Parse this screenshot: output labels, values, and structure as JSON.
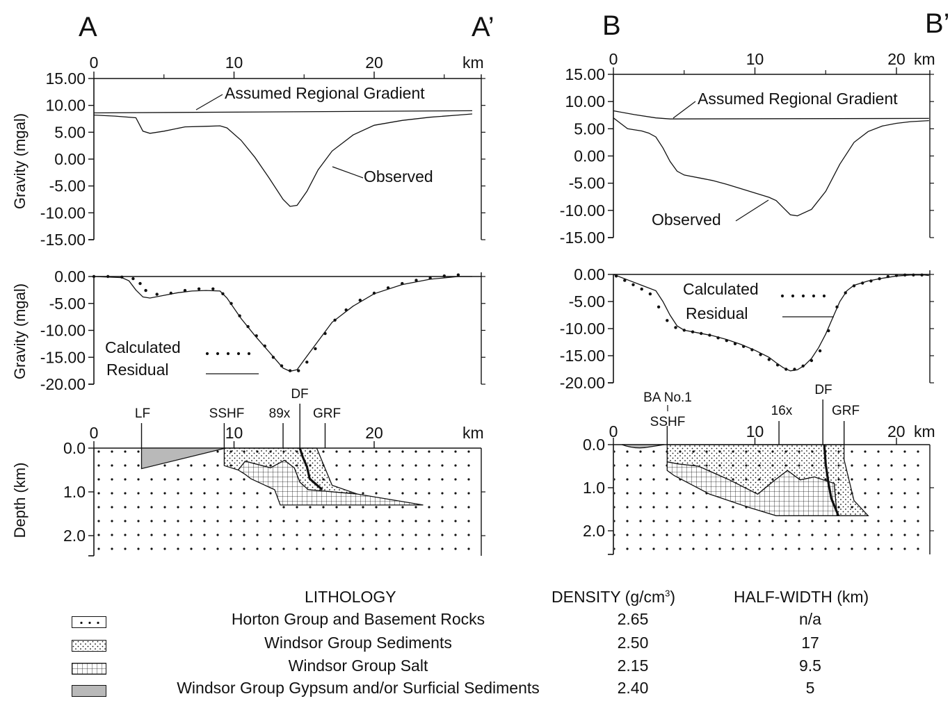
{
  "section_labels": {
    "a": "A",
    "a_prime": "A’",
    "b": "B",
    "b_prime": "B’"
  },
  "axes": {
    "km_unit": "km",
    "dist_ticks_a": [
      "0",
      "10",
      "20"
    ],
    "dist_ticks_b": [
      "0",
      "10",
      "20"
    ],
    "grav_ticks_top": [
      "15.00",
      "10.00",
      "5.00",
      "0.00",
      "-5.00",
      "-10.00",
      "-15.00"
    ],
    "grav_ticks_resid": [
      "0.00",
      "-5.00",
      "-10.00",
      "-15.00",
      "-20.00"
    ],
    "depth_ticks": [
      "0.0",
      "1.0",
      "2.0"
    ],
    "gravity_label": "Gravity (mgal)",
    "depth_label": "Depth (km)"
  },
  "annotations": {
    "regional": "Assumed Regional Gradient",
    "observed": "Observed",
    "calculated": "Calculated",
    "residual": "Residual"
  },
  "faults_a": [
    "LF",
    "SSHF",
    "89x",
    "DF",
    "GRF"
  ],
  "faults_b": [
    "BA No.1",
    "SSHF",
    "16x",
    "DF",
    "GRF"
  ],
  "legend": {
    "headers": {
      "lithology": "LITHOLOGY",
      "density_prefix": "DENSITY (g/cm",
      "density_sup": "3",
      "density_suffix": ")",
      "halfwidth": "HALF-WIDTH (km)"
    },
    "rows": [
      {
        "name": "Horton Group and Basement Rocks",
        "density": "2.65",
        "halfwidth": "n/a",
        "pattern": "dots"
      },
      {
        "name": "Windsor Group Sediments",
        "density": "2.50",
        "halfwidth": "17",
        "pattern": "stipple"
      },
      {
        "name": "Windsor Group Salt",
        "density": "2.15",
        "halfwidth": "9.5",
        "pattern": "grid"
      },
      {
        "name": "Windsor Group Gypsum and/or Surficial Sediments",
        "density": "2.40",
        "halfwidth": "5",
        "pattern": "gray"
      }
    ]
  },
  "chart_data": [
    {
      "type": "line",
      "panel": "A-A' gravity",
      "xlim": [
        0,
        27
      ],
      "ylim": [
        -15,
        15
      ],
      "series": [
        {
          "name": "Assumed Regional Gradient",
          "x": [
            0,
            27
          ],
          "y": [
            8.6,
            9.0
          ]
        },
        {
          "name": "Observed",
          "x": [
            0,
            1.5,
            3,
            3.5,
            4,
            5,
            6.5,
            8,
            9,
            9.5,
            10.5,
            11.5,
            12.5,
            13.5,
            14,
            14.5,
            15.2,
            16,
            17,
            18.5,
            20,
            22,
            24,
            26,
            27
          ],
          "y": [
            8.2,
            8.0,
            7.7,
            5.2,
            4.8,
            5.2,
            6.0,
            6.1,
            6.2,
            5.8,
            3.5,
            0.3,
            -3.5,
            -7.5,
            -8.8,
            -8.6,
            -6.0,
            -2.0,
            1.5,
            4.5,
            6.3,
            7.2,
            7.8,
            8.2,
            8.4
          ]
        }
      ]
    },
    {
      "type": "line",
      "panel": "A-A' residual",
      "xlim": [
        0,
        27
      ],
      "ylim": [
        -20,
        0
      ],
      "series": [
        {
          "name": "Calculated",
          "x": [
            0,
            1,
            2,
            2.8,
            3.3,
            3.7,
            4.5,
            5.5,
            6.5,
            7.5,
            8.5,
            9.2,
            9.8,
            10.4,
            11,
            11.6,
            12.2,
            12.8,
            13.4,
            14,
            14.6,
            15.2,
            15.8,
            16.5,
            17.2,
            18,
            19,
            20,
            21,
            22,
            23,
            24,
            25,
            26
          ],
          "y": [
            0,
            0,
            -0.1,
            -0.4,
            -1.3,
            -2.6,
            -3.3,
            -3.1,
            -2.6,
            -2.3,
            -2.3,
            -3.2,
            -5.0,
            -7.3,
            -9.3,
            -11.0,
            -12.9,
            -15.0,
            -16.6,
            -17.5,
            -17.5,
            -15.9,
            -13.4,
            -10.6,
            -8.1,
            -6.2,
            -4.4,
            -3.1,
            -2.1,
            -1.3,
            -0.7,
            -0.3,
            0.1,
            0.3
          ]
        },
        {
          "name": "Residual",
          "x": [
            0,
            2,
            2.5,
            3,
            3.5,
            4,
            5,
            6,
            7,
            8,
            9,
            9.5,
            10.5,
            11.5,
            12.5,
            13.5,
            14,
            14.5,
            15,
            16,
            17,
            18.5,
            20,
            22,
            24,
            26,
            27
          ],
          "y": [
            0,
            -0.2,
            -0.8,
            -2.5,
            -3.8,
            -4.0,
            -3.5,
            -3.0,
            -2.7,
            -2.6,
            -2.7,
            -4.0,
            -7.8,
            -11.0,
            -14.0,
            -17.0,
            -17.6,
            -17.3,
            -15.5,
            -12.0,
            -8.5,
            -5.5,
            -3.2,
            -1.5,
            -0.5,
            0,
            0
          ]
        }
      ]
    },
    {
      "type": "line",
      "panel": "B-B' gravity",
      "xlim": [
        0,
        22.3
      ],
      "ylim": [
        -15,
        15
      ],
      "series": [
        {
          "name": "Assumed Regional Gradient",
          "x": [
            0,
            1.5,
            3,
            4,
            22.3
          ],
          "y": [
            8.3,
            7.6,
            7.0,
            6.8,
            6.9
          ]
        },
        {
          "name": "Observed",
          "x": [
            0,
            0.5,
            1,
            1.5,
            2,
            2.5,
            3,
            3.5,
            4,
            4.5,
            5,
            6,
            7,
            8,
            9,
            10,
            11,
            11.5,
            12,
            12.5,
            13,
            14,
            15,
            16,
            17,
            18,
            19,
            20,
            21,
            22.3
          ],
          "y": [
            7.0,
            6.0,
            5.0,
            4.8,
            4.6,
            4.2,
            3.5,
            1.5,
            -1.0,
            -2.8,
            -3.5,
            -4.0,
            -4.5,
            -5.2,
            -6.0,
            -6.8,
            -7.6,
            -8.2,
            -9.5,
            -10.8,
            -11.0,
            -9.8,
            -6.5,
            -1.5,
            2.5,
            4.5,
            5.5,
            6.0,
            6.3,
            6.5
          ]
        }
      ]
    },
    {
      "type": "line",
      "panel": "B-B' residual",
      "xlim": [
        0,
        22.3
      ],
      "ylim": [
        -20,
        0
      ],
      "series": [
        {
          "name": "Calculated",
          "x": [
            0.2,
            0.8,
            1.4,
            2,
            2.6,
            3.2,
            3.8,
            4.4,
            5,
            5.6,
            6.2,
            6.8,
            7.4,
            8,
            8.6,
            9.2,
            9.8,
            10.4,
            11,
            11.6,
            12.2,
            12.8,
            13.4,
            14,
            14.6,
            15.2,
            15.8,
            16.4,
            17,
            17.6,
            18.2,
            18.8,
            19.4,
            20,
            20.6,
            21.2,
            21.8
          ],
          "y": [
            -0.3,
            -1.1,
            -1.9,
            -2.7,
            -3.6,
            -6.0,
            -8.5,
            -9.8,
            -10.3,
            -10.6,
            -10.9,
            -11.2,
            -11.7,
            -12.2,
            -12.8,
            -13.3,
            -13.9,
            -14.8,
            -15.7,
            -16.7,
            -17.5,
            -17.5,
            -16.9,
            -15.9,
            -14.1,
            -10.4,
            -6.0,
            -3.4,
            -2.1,
            -1.6,
            -1.2,
            -0.8,
            -0.4,
            -0.2,
            -0.1,
            -0.1,
            -0.1
          ]
        },
        {
          "name": "Residual",
          "x": [
            0,
            1,
            2,
            3,
            3.5,
            4,
            4.5,
            5,
            6,
            7,
            8,
            9,
            10,
            11,
            11.5,
            12,
            12.5,
            13,
            13.5,
            14,
            14.5,
            15,
            15.5,
            16,
            16.5,
            17,
            18,
            19,
            20,
            21,
            22,
            22.3
          ],
          "y": [
            0,
            -1.0,
            -2.0,
            -3.0,
            -5.0,
            -7.5,
            -9.5,
            -10.3,
            -10.8,
            -11.3,
            -12.0,
            -12.9,
            -14.0,
            -15.3,
            -16.3,
            -17.2,
            -17.8,
            -17.6,
            -16.8,
            -15.5,
            -13.5,
            -11.0,
            -8.0,
            -5.0,
            -3.0,
            -2.0,
            -1.2,
            -0.7,
            -0.3,
            -0.1,
            -0.1,
            -0.2
          ]
        }
      ]
    }
  ]
}
